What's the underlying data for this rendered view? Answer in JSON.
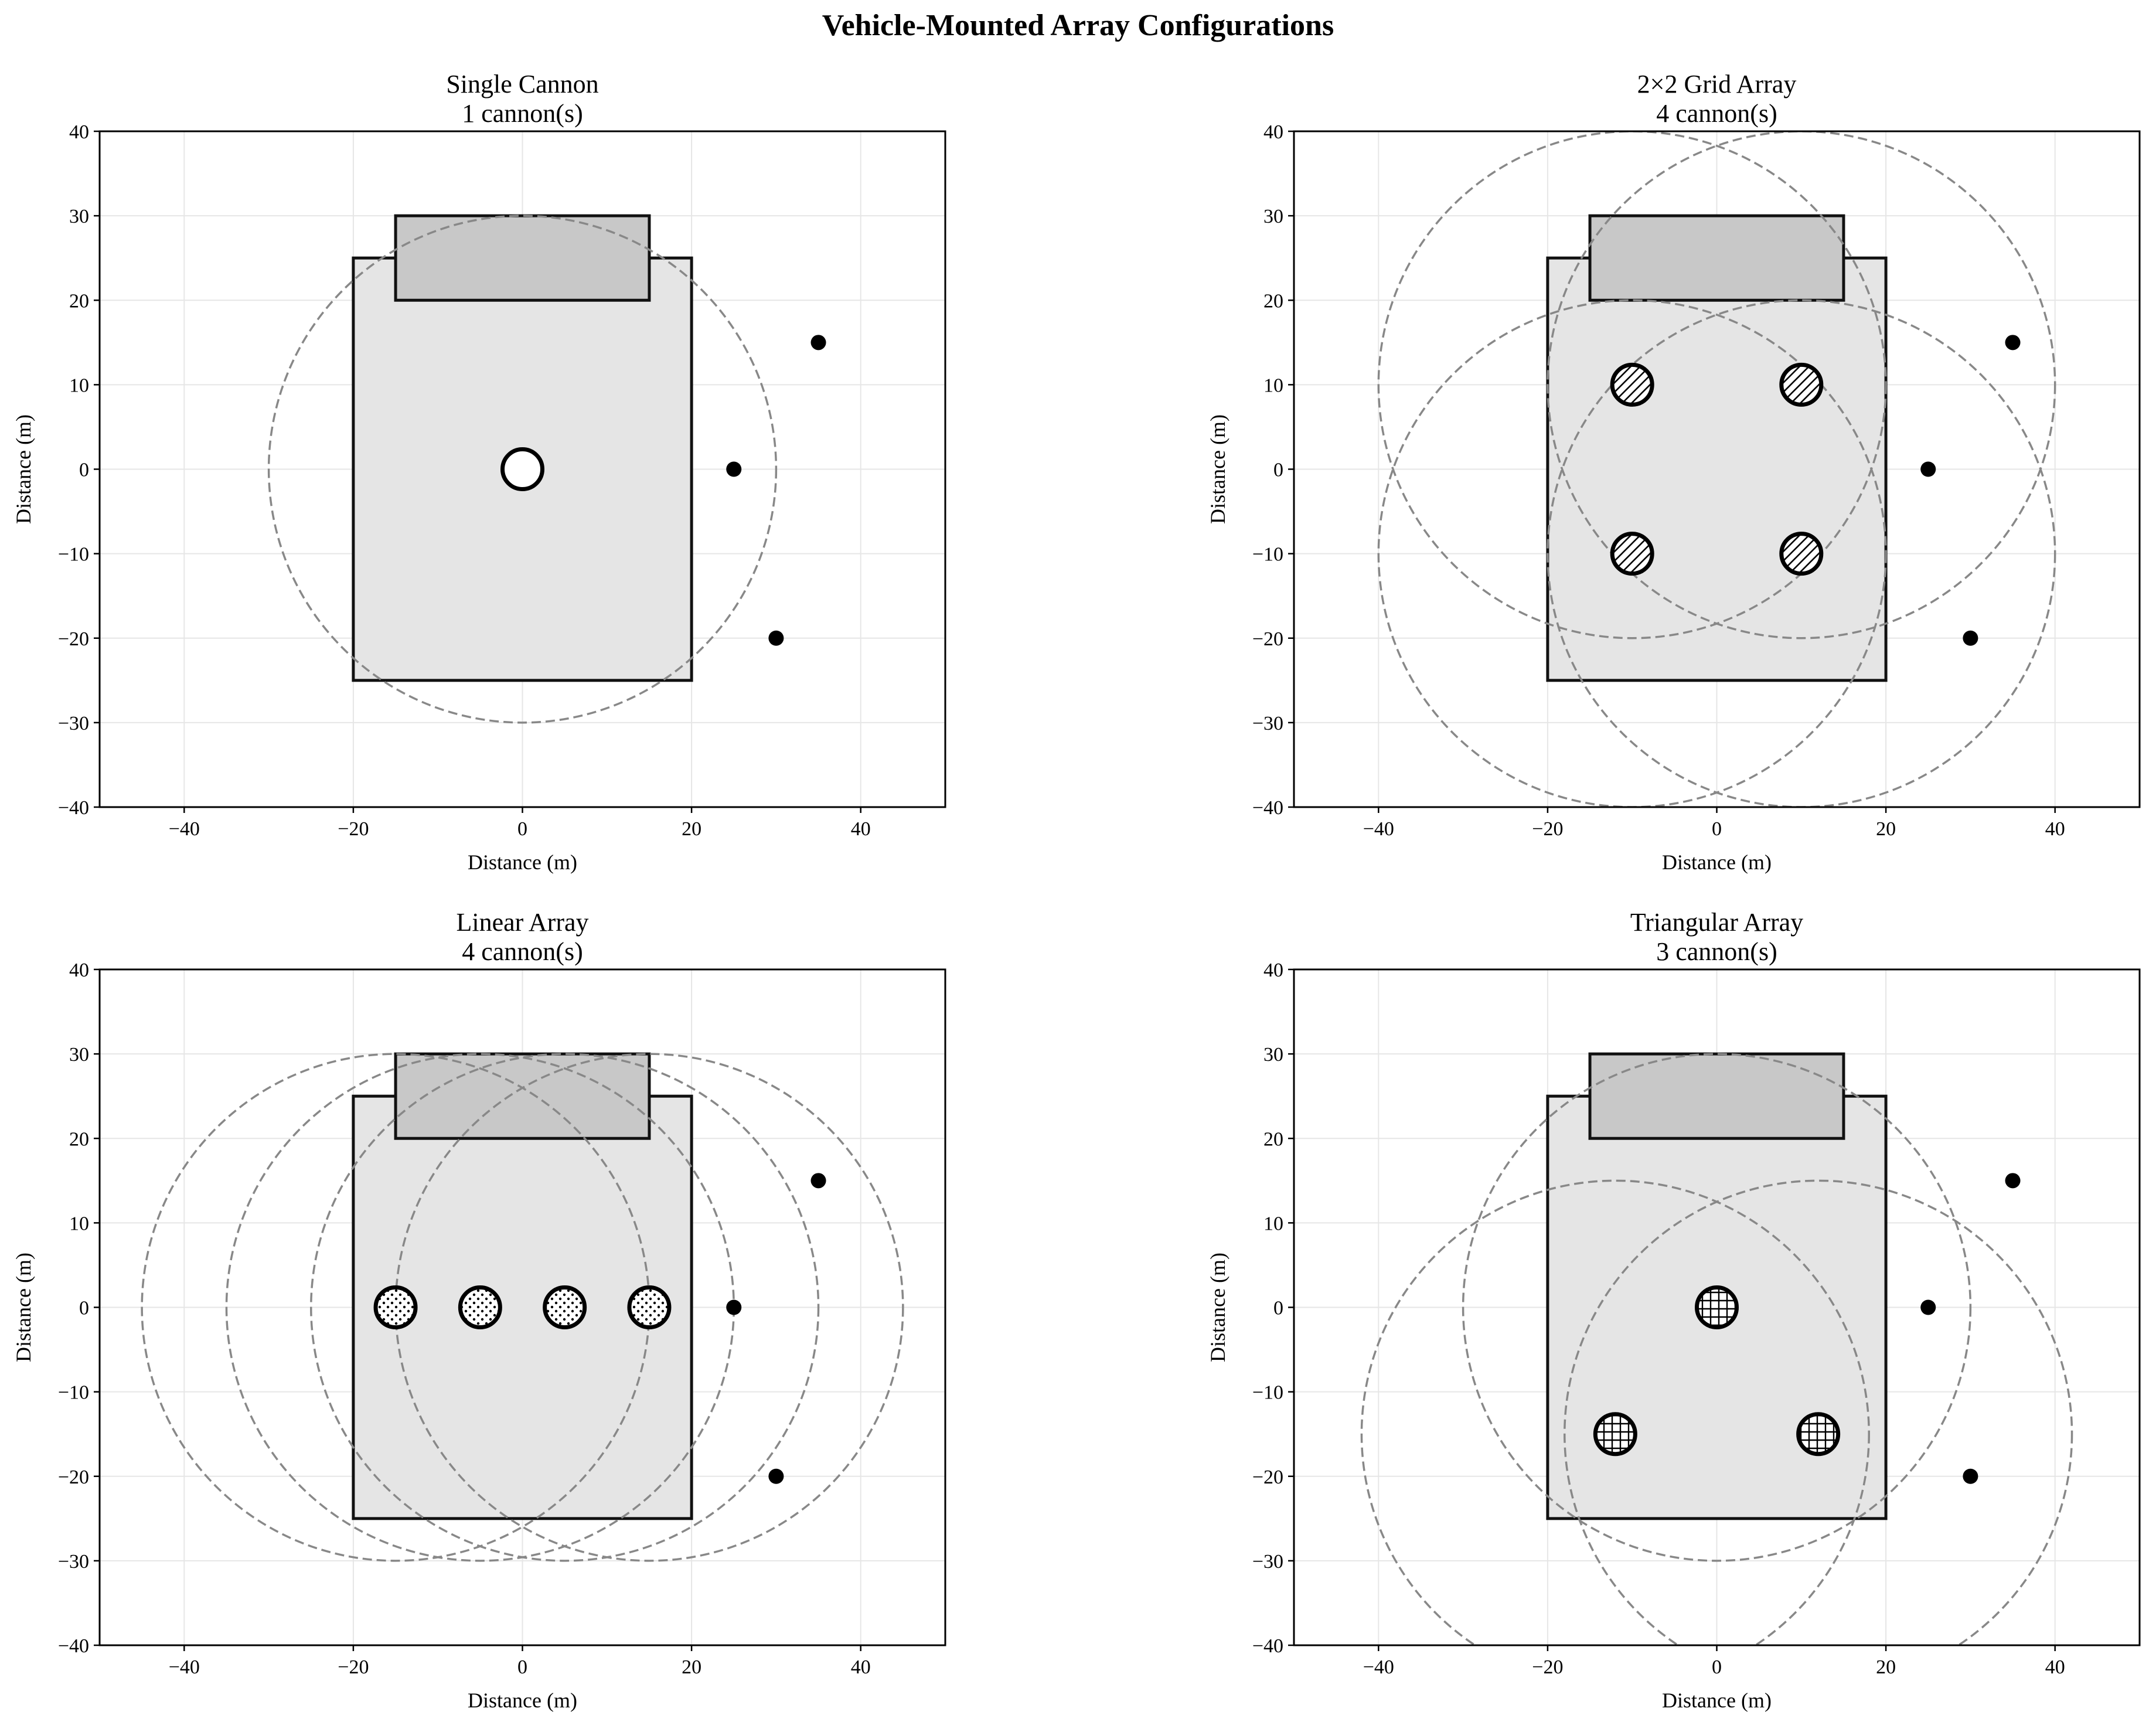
{
  "title": "Vehicle-Mounted Array Configurations",
  "chart_data": [
    {
      "type": "scatter",
      "title": "Single Cannon",
      "subtitle": "1 cannon(s)",
      "xlabel": "Distance (m)",
      "ylabel": "Distance (m)",
      "xlim": [
        -50,
        50
      ],
      "ylim": [
        -40,
        40
      ],
      "xticks": [
        -40,
        -20,
        0,
        20,
        40
      ],
      "yticks": [
        -40,
        -30,
        -20,
        -10,
        0,
        10,
        20,
        30,
        40
      ],
      "grid": true,
      "vehicle_body": {
        "x0": -20,
        "x1": 20,
        "y0": -25,
        "y1": 25,
        "color": "#e5e5e5"
      },
      "vehicle_cab": {
        "x0": -15,
        "x1": 15,
        "y0": 20,
        "y1": 30,
        "color": "#c8c8c8"
      },
      "cannon_pattern": "plain",
      "cannons": [
        {
          "x": 0,
          "y": 0
        }
      ],
      "coverage_radius": 30,
      "targets": [
        {
          "x": 25,
          "y": 0
        },
        {
          "x": 35,
          "y": 15
        },
        {
          "x": 30,
          "y": -20
        }
      ]
    },
    {
      "type": "scatter",
      "title": "2×2 Grid Array",
      "subtitle": "4 cannon(s)",
      "xlabel": "Distance (m)",
      "ylabel": "Distance (m)",
      "xlim": [
        -50,
        50
      ],
      "ylim": [
        -40,
        40
      ],
      "xticks": [
        -40,
        -20,
        0,
        20,
        40
      ],
      "yticks": [
        -40,
        -30,
        -20,
        -10,
        0,
        10,
        20,
        30,
        40
      ],
      "grid": true,
      "vehicle_body": {
        "x0": -20,
        "x1": 20,
        "y0": -25,
        "y1": 25,
        "color": "#e5e5e5"
      },
      "vehicle_cab": {
        "x0": -15,
        "x1": 15,
        "y0": 20,
        "y1": 30,
        "color": "#c8c8c8"
      },
      "cannon_pattern": "diagonal",
      "cannons": [
        {
          "x": -10,
          "y": 10
        },
        {
          "x": 10,
          "y": 10
        },
        {
          "x": -10,
          "y": -10
        },
        {
          "x": 10,
          "y": -10
        }
      ],
      "coverage_radius": 30,
      "targets": [
        {
          "x": 25,
          "y": 0
        },
        {
          "x": 35,
          "y": 15
        },
        {
          "x": 30,
          "y": -20
        }
      ]
    },
    {
      "type": "scatter",
      "title": "Linear Array",
      "subtitle": "4 cannon(s)",
      "xlabel": "Distance (m)",
      "ylabel": "Distance (m)",
      "xlim": [
        -50,
        50
      ],
      "ylim": [
        -40,
        40
      ],
      "xticks": [
        -40,
        -20,
        0,
        20,
        40
      ],
      "yticks": [
        -40,
        -30,
        -20,
        -10,
        0,
        10,
        20,
        30,
        40
      ],
      "grid": true,
      "vehicle_body": {
        "x0": -20,
        "x1": 20,
        "y0": -25,
        "y1": 25,
        "color": "#e5e5e5"
      },
      "vehicle_cab": {
        "x0": -15,
        "x1": 15,
        "y0": 20,
        "y1": 30,
        "color": "#c8c8c8"
      },
      "cannon_pattern": "dots",
      "cannons": [
        {
          "x": -15,
          "y": 0
        },
        {
          "x": -5,
          "y": 0
        },
        {
          "x": 5,
          "y": 0
        },
        {
          "x": 15,
          "y": 0
        }
      ],
      "coverage_radius": 30,
      "targets": [
        {
          "x": 25,
          "y": 0
        },
        {
          "x": 35,
          "y": 15
        },
        {
          "x": 30,
          "y": -20
        }
      ]
    },
    {
      "type": "scatter",
      "title": "Triangular Array",
      "subtitle": "3 cannon(s)",
      "xlabel": "Distance (m)",
      "ylabel": "Distance (m)",
      "xlim": [
        -50,
        50
      ],
      "ylim": [
        -40,
        40
      ],
      "xticks": [
        -40,
        -20,
        0,
        20,
        40
      ],
      "yticks": [
        -40,
        -30,
        -20,
        -10,
        0,
        10,
        20,
        30,
        40
      ],
      "grid": true,
      "vehicle_body": {
        "x0": -20,
        "x1": 20,
        "y0": -25,
        "y1": 25,
        "color": "#e5e5e5"
      },
      "vehicle_cab": {
        "x0": -15,
        "x1": 15,
        "y0": 20,
        "y1": 30,
        "color": "#c8c8c8"
      },
      "cannon_pattern": "grid",
      "cannons": [
        {
          "x": 0,
          "y": 0
        },
        {
          "x": -12,
          "y": -15
        },
        {
          "x": 12,
          "y": -15
        }
      ],
      "coverage_radius": 30,
      "targets": [
        {
          "x": 25,
          "y": 0
        },
        {
          "x": 35,
          "y": 15
        },
        {
          "x": 30,
          "y": -20
        }
      ]
    }
  ]
}
